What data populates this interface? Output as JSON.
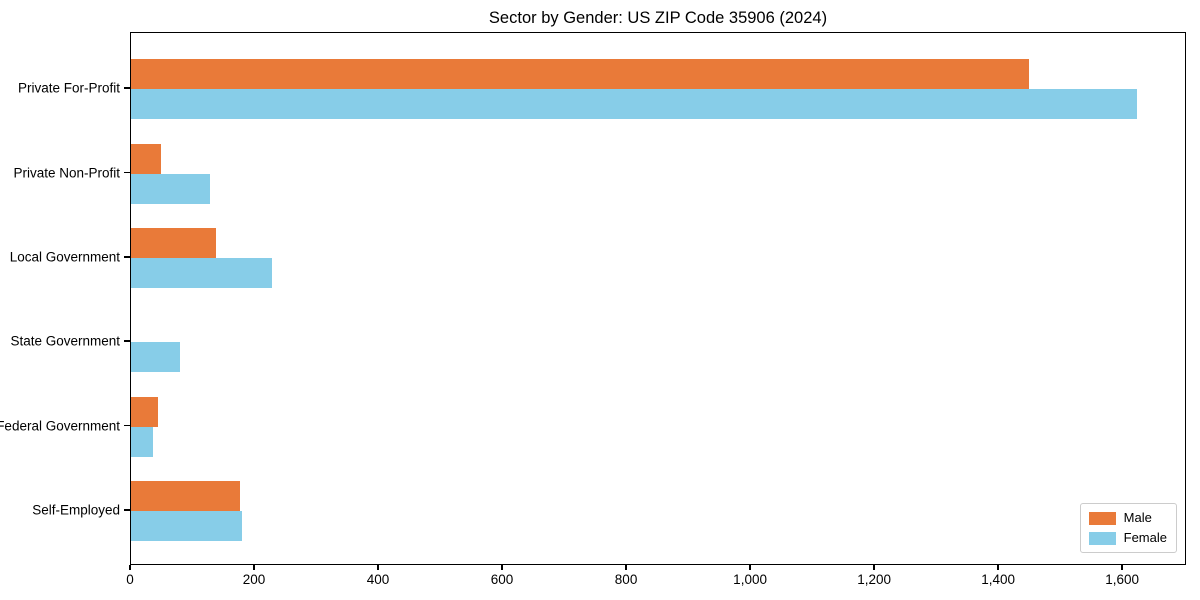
{
  "title": "Sector by Gender: US ZIP Code 35906 (2024)",
  "chart_data": {
    "type": "bar",
    "orientation": "horizontal",
    "title": "Sector by Gender: US ZIP Code 35906 (2024)",
    "xlabel": "",
    "ylabel": "",
    "categories": [
      "Private For-Profit",
      "Private Non-Profit",
      "Local Government",
      "State Government",
      "Federal Government",
      "Self-Employed"
    ],
    "series": [
      {
        "name": "Male",
        "color": "#E97A39",
        "values": [
          1448,
          48,
          137,
          0,
          44,
          176
        ]
      },
      {
        "name": "Female",
        "color": "#87CDE8",
        "values": [
          1622,
          127,
          227,
          79,
          35,
          179
        ]
      }
    ],
    "xlim": [
      0,
      1703
    ],
    "xticks": [
      0,
      200,
      400,
      600,
      800,
      1000,
      1200,
      1400,
      1600
    ],
    "xtick_labels": [
      "0",
      "200",
      "400",
      "600",
      "800",
      "1,000",
      "1,200",
      "1,400",
      "1,600"
    ],
    "grid": false,
    "legend": {
      "position": "lower right",
      "entries": [
        "Male",
        "Female"
      ]
    },
    "frame": {
      "color": "#000000"
    }
  }
}
